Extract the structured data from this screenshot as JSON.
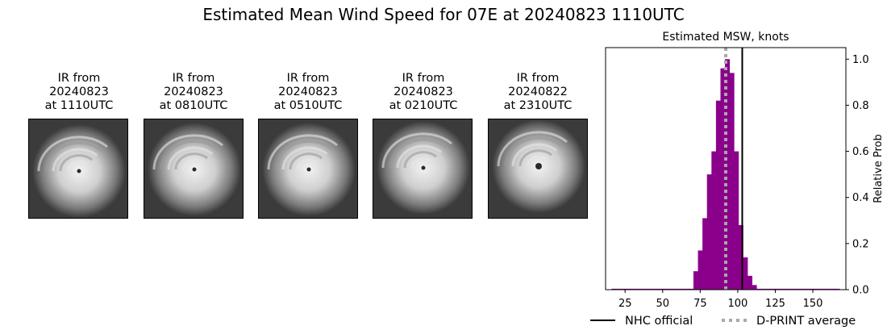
{
  "page": {
    "title": "Estimated Mean Wind Speed for 07E at 20240823 1110UTC"
  },
  "ir_panels": [
    {
      "line1": "IR from",
      "line2": "20240823",
      "line3": "at 1110UTC"
    },
    {
      "line1": "IR from",
      "line2": "20240823",
      "line3": "at 0810UTC"
    },
    {
      "line1": "IR from",
      "line2": "20240823",
      "line3": "at 0510UTC"
    },
    {
      "line1": "IR from",
      "line2": "20240823",
      "line3": "at 0210UTC"
    },
    {
      "line1": "IR from",
      "line2": "20240822",
      "line3": "at 2310UTC"
    }
  ],
  "chart_data": {
    "type": "bar",
    "title": "Estimated MSW, knots",
    "xlabel": "",
    "ylabel": "Relative Prob",
    "xlim": [
      12,
      172
    ],
    "ylim": [
      0,
      1.05
    ],
    "xticks": [
      25,
      50,
      75,
      100,
      125,
      150
    ],
    "yticks": [
      0.0,
      0.2,
      0.4,
      0.6,
      0.8,
      1.0
    ],
    "ytick_labels": [
      "0.0",
      "0.2",
      "0.4",
      "0.6",
      "0.8",
      "1.0"
    ],
    "y_axis_side": "right",
    "bar_color": "#8b008b",
    "bin_width": 3,
    "categories": [
      72,
      75,
      78,
      81,
      84,
      87,
      90,
      93,
      96,
      99,
      102,
      105,
      108,
      111
    ],
    "values": [
      0.08,
      0.17,
      0.31,
      0.5,
      0.6,
      0.82,
      0.96,
      1.0,
      0.94,
      0.6,
      0.28,
      0.14,
      0.06,
      0.02
    ],
    "baseline_range": [
      16,
      168
    ],
    "nhc_official": 103,
    "dprint_average": 92,
    "legend": [
      {
        "label": "NHC official",
        "style": "solid",
        "color": "#000000"
      },
      {
        "label": "D-PRINT average",
        "style": "dotted",
        "color": "#a9a9a9"
      }
    ],
    "legend_position": "bottom"
  }
}
